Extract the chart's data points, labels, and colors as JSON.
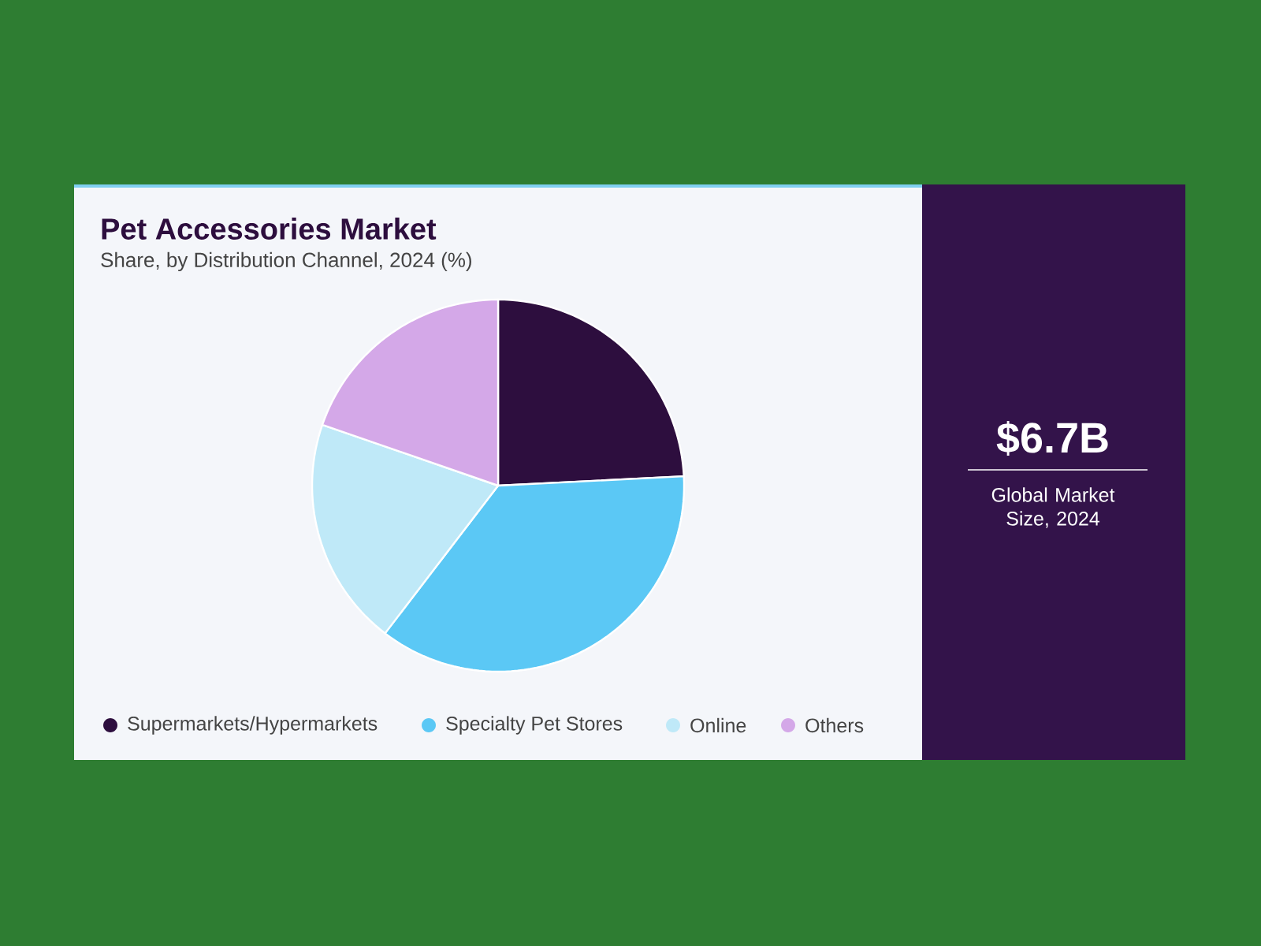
{
  "chart_data": {
    "type": "pie",
    "title": "Pet Accessories Market",
    "subtitle": "Share, by Distribution Channel, 2024 (%)",
    "categories": [
      "Supermarkets/Hypermarkets",
      "Specialty Pet Stores",
      "Online",
      "Others"
    ],
    "values": [
      24.2,
      36.2,
      19.9,
      19.7
    ],
    "colors": [
      "#2d0e3e",
      "#5bc8f5",
      "#bfe9f8",
      "#d4a8e8"
    ],
    "legend": "bottom",
    "annotations": [
      "$6.7B",
      "Global Market Size, 2024"
    ]
  }
}
